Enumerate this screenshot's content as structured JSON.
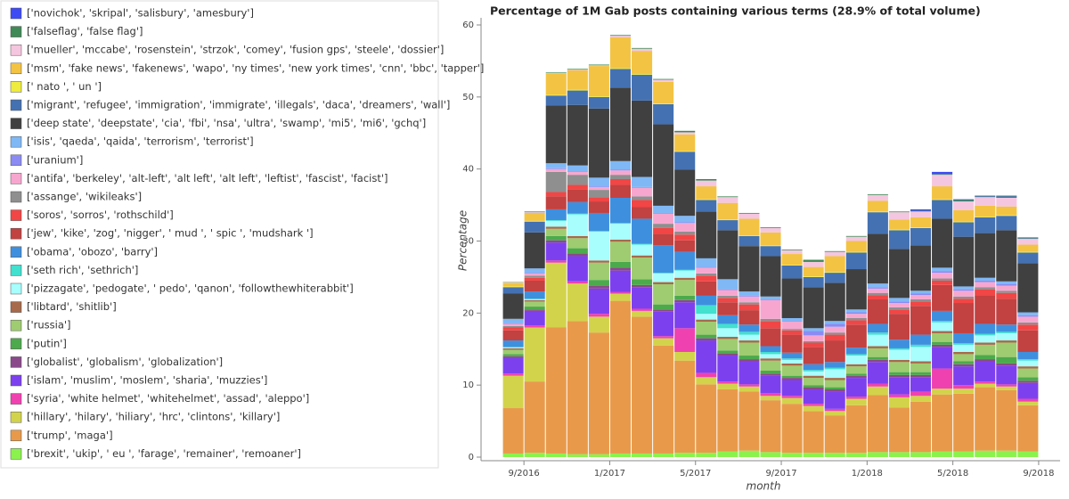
{
  "chart_data": {
    "type": "stacked-bar",
    "title": "Percentage of 1M Gab posts containing various terms (28.9% of total volume)",
    "x_label": "month",
    "y_label": "Percentage",
    "x": [
      "2016-08",
      "2016-09",
      "2016-10",
      "2016-11",
      "2016-12",
      "2017-01",
      "2017-02",
      "2017-03",
      "2017-04",
      "2017-05",
      "2017-06",
      "2017-07",
      "2017-08",
      "2017-09",
      "2017-10",
      "2017-11",
      "2017-12",
      "2018-01",
      "2018-02",
      "2018-03",
      "2018-04",
      "2018-05",
      "2018-06",
      "2018-07",
      "2018-08"
    ],
    "xlim": [
      "2016-07",
      "2018-10"
    ],
    "xticks": [
      {
        "value": "2016-09",
        "label": "9/2016"
      },
      {
        "value": "2017-01",
        "label": "1/2017"
      },
      {
        "value": "2017-05",
        "label": "5/2017"
      },
      {
        "value": "2017-09",
        "label": "9/2017"
      },
      {
        "value": "2018-01",
        "label": "1/2018"
      },
      {
        "value": "2018-05",
        "label": "5/2018"
      },
      {
        "value": "2018-09",
        "label": "9/2018"
      }
    ],
    "ylim": [
      0,
      60
    ],
    "yticks": [
      0,
      10,
      20,
      30,
      40,
      50,
      60
    ],
    "series": [
      {
        "name": "['novichok', 'skripal', 'salisbury', 'amesbury']",
        "color": "#3d4bf5",
        "values": [
          0,
          0,
          0,
          0,
          0,
          0,
          0,
          0,
          0,
          0,
          0,
          0,
          0,
          0,
          0,
          0,
          0,
          0,
          0,
          0.2,
          0.3,
          0.1,
          0.1,
          0.1,
          0.1
        ]
      },
      {
        "name": "['falseflag', 'false flag']",
        "color": "#3f8a56",
        "values": [
          0.05,
          0.1,
          0.1,
          0.1,
          0.1,
          0.1,
          0.1,
          0.1,
          0.2,
          0.2,
          0.1,
          0.1,
          0.1,
          0.1,
          0.3,
          0.1,
          0.1,
          0.1,
          0.1,
          0.1,
          0.1,
          0.2,
          0.1,
          0.2,
          0.1
        ]
      },
      {
        "name": "['mueller', 'mccabe', 'rosenstein', 'strzok', 'comey', 'fusion gps', 'steele', 'dossier']",
        "color": "#f5c6df",
        "values": [
          0.05,
          0.1,
          0.1,
          0.1,
          0.1,
          0.2,
          0.3,
          0.3,
          0.3,
          0.8,
          0.8,
          0.7,
          0.6,
          0.5,
          0.7,
          0.6,
          0.6,
          0.8,
          1.0,
          0.8,
          1.6,
          1.2,
          1.2,
          1.2,
          0.8
        ]
      },
      {
        "name": "['msm', 'fake news', 'fakenews', 'wapo', 'ny times', 'new york times', 'cnn', 'bbc', 'tapper']",
        "color": "#f3c343",
        "values": [
          0.5,
          1.1,
          2.9,
          2.7,
          4.2,
          4.3,
          3.2,
          3.0,
          2.3,
          1.8,
          2.3,
          2.3,
          1.8,
          1.5,
          1.3,
          2.2,
          1.5,
          1.5,
          1.4,
          1.4,
          1.8,
          1.6,
          1.5,
          1.2,
          1.0
        ]
      },
      {
        "name": "[' nato ', ' un ']",
        "color": "#efec3d",
        "values": [
          0.1,
          0.1,
          0.1,
          0.1,
          0.1,
          0.1,
          0.1,
          0.1,
          0.1,
          0.1,
          0.1,
          0.1,
          0.1,
          0.1,
          0.1,
          0.1,
          0.1,
          0.1,
          0.1,
          0.1,
          0.1,
          0.1,
          0.1,
          0.1,
          0.1
        ]
      },
      {
        "name": "['migrant', 'refugee', 'immigration', 'immigrate', 'illegals', 'daca', 'dreamers', 'wall']",
        "color": "#4471b2",
        "values": [
          0.9,
          1.5,
          1.4,
          2.0,
          1.6,
          2.6,
          3.6,
          2.8,
          2.5,
          1.6,
          1.4,
          1.4,
          1.4,
          1.8,
          1.4,
          1.4,
          2.3,
          3.0,
          2.6,
          2.4,
          2.6,
          2.0,
          2.2,
          2.0,
          1.5
        ]
      },
      {
        "name": "['deep state', 'deepstate', 'cia', 'fbi', 'nsa', 'ultra', 'swamp', 'mi5', 'mi6', 'gchq']",
        "color": "#404040",
        "values": [
          3.5,
          5.0,
          8.0,
          8.4,
          9.6,
          10.2,
          10.6,
          11.3,
          6.4,
          6.5,
          6.8,
          6.3,
          5.6,
          5.5,
          5.7,
          5.3,
          5.6,
          6.9,
          6.8,
          6.3,
          6.8,
          6.9,
          6.2,
          7.1,
          6.8
        ]
      },
      {
        "name": "['isis', 'qaeda', 'qaida', 'terrorism', 'terrorist']",
        "color": "#7fb8f5",
        "values": [
          0.6,
          0.6,
          0.7,
          0.8,
          1.2,
          1.2,
          1.4,
          1.0,
          0.9,
          1.2,
          1.4,
          0.6,
          0.4,
          0.4,
          0.4,
          0.4,
          0.4,
          0.5,
          0.5,
          0.4,
          0.5,
          0.4,
          0.4,
          0.4,
          0.4
        ]
      },
      {
        "name": "['uranium']",
        "color": "#8b8bf3",
        "values": [
          0.1,
          0.1,
          0.1,
          0.1,
          0.1,
          0.1,
          0.1,
          0.1,
          0.1,
          0.1,
          0.1,
          0.1,
          0.1,
          0.1,
          0.6,
          0.4,
          0.2,
          0.2,
          0.2,
          0.2,
          0.2,
          0.2,
          0.2,
          0.2,
          0.2
        ]
      },
      {
        "name": "['antifa', 'berkeley', 'alt-left', 'alt left', 'alt left', 'leftist', 'fascist', 'facist']",
        "color": "#f7a7cf",
        "values": [
          0.3,
          0.3,
          0.4,
          0.4,
          0.4,
          0.6,
          1.2,
          1.4,
          1.2,
          0.8,
          0.8,
          0.8,
          2.6,
          1.0,
          0.8,
          0.8,
          0.6,
          0.6,
          0.6,
          0.6,
          0.8,
          0.8,
          0.7,
          0.7,
          0.8
        ]
      },
      {
        "name": "['assange', 'wikileaks']",
        "color": "#8f8f8f",
        "values": [
          0.2,
          0.3,
          2.8,
          1.4,
          1.0,
          0.6,
          0.5,
          0.6,
          0.4,
          0.3,
          0.3,
          0.3,
          0.3,
          0.2,
          0.2,
          0.3,
          0.3,
          0.3,
          0.3,
          0.3,
          0.3,
          0.3,
          0.3,
          0.3,
          0.3
        ]
      },
      {
        "name": "['soros', 'sorros', 'rothschild']",
        "color": "#f24545",
        "values": [
          0.4,
          0.4,
          0.6,
          0.6,
          0.6,
          0.8,
          1.0,
          0.8,
          0.8,
          0.8,
          0.6,
          0.8,
          1.0,
          0.6,
          0.6,
          0.8,
          0.6,
          0.6,
          0.6,
          0.6,
          0.6,
          0.6,
          0.8,
          0.8,
          0.8
        ]
      },
      {
        "name": "['jew', 'kike', 'zog', 'nigger', ' mud ', ' spic ', 'mudshark ']",
        "color": "#c24141",
        "values": [
          1.4,
          1.5,
          1.8,
          1.8,
          1.6,
          1.8,
          1.6,
          1.6,
          1.6,
          2.0,
          1.8,
          2.0,
          2.5,
          2.5,
          2.4,
          3.0,
          3.2,
          3.4,
          3.6,
          4.0,
          3.6,
          4.2,
          4.0,
          3.6,
          3.0
        ]
      },
      {
        "name": "['obama', 'obozo', 'barry']",
        "color": "#3f8fdf",
        "values": [
          0.9,
          1.0,
          1.5,
          1.6,
          2.5,
          3.5,
          3.5,
          3.8,
          2.5,
          1.3,
          1.2,
          1.0,
          0.8,
          0.8,
          0.8,
          0.8,
          0.9,
          1.2,
          1.2,
          1.4,
          1.4,
          1.4,
          1.4,
          1.0,
          1.0
        ]
      },
      {
        "name": "['seth rich', 'sethrich']",
        "color": "#42e0cf",
        "values": [
          0.1,
          0.1,
          0.1,
          0.1,
          0.1,
          0.1,
          0.1,
          0.1,
          0.1,
          1.2,
          0.6,
          0.4,
          0.3,
          0.2,
          0.2,
          0.2,
          0.2,
          0.3,
          0.2,
          0.3,
          0.2,
          0.2,
          0.2,
          0.2,
          0.2
        ]
      },
      {
        "name": "['pizzagate', 'pedogate', ' pedo', 'qanon', 'followthewhiterabbit']",
        "color": "#a8fdfd",
        "values": [
          0.1,
          0.1,
          0.8,
          3.0,
          4.0,
          2.2,
          1.5,
          1.2,
          1.0,
          0.8,
          1.2,
          0.8,
          0.6,
          0.5,
          0.6,
          1.2,
          1.2,
          1.6,
          1.4,
          2.0,
          1.2,
          1.0,
          1.0,
          1.0,
          0.8
        ]
      },
      {
        "name": "['libtard', 'shitlib']",
        "color": "#a76a4a",
        "values": [
          0.2,
          0.2,
          0.3,
          0.3,
          0.3,
          0.3,
          0.3,
          0.3,
          0.3,
          0.3,
          0.3,
          0.3,
          0.3,
          0.3,
          0.3,
          0.3,
          0.3,
          0.3,
          0.3,
          0.3,
          0.3,
          0.3,
          0.3,
          0.3,
          0.3
        ]
      },
      {
        "name": "['russia']",
        "color": "#9fcc70",
        "values": [
          0.6,
          0.7,
          1.0,
          1.4,
          2.4,
          2.8,
          3.0,
          2.8,
          2.2,
          1.8,
          1.6,
          1.8,
          1.4,
          1.4,
          1.0,
          1.0,
          1.0,
          1.2,
          1.4,
          1.2,
          1.2,
          1.0,
          1.4,
          2.0,
          1.2
        ]
      },
      {
        "name": "['putin']",
        "color": "#4caa4c",
        "values": [
          0.3,
          0.4,
          0.6,
          0.7,
          0.8,
          0.8,
          0.8,
          0.7,
          0.6,
          0.5,
          0.4,
          0.5,
          0.4,
          0.3,
          0.3,
          0.3,
          0.3,
          0.4,
          0.4,
          0.4,
          0.4,
          0.4,
          0.6,
          0.9,
          0.5
        ]
      },
      {
        "name": "['globalist', 'globalism', 'globalization']",
        "color": "#8a4a8a",
        "values": [
          0.2,
          0.2,
          0.3,
          0.4,
          0.4,
          0.4,
          0.3,
          0.3,
          0.3,
          0.3,
          0.3,
          0.3,
          0.3,
          0.3,
          0.3,
          0.3,
          0.3,
          0.3,
          0.3,
          0.3,
          0.3,
          0.3,
          0.3,
          0.3,
          0.3
        ]
      },
      {
        "name": "['islam', 'muslim', 'moslem', 'sharia', 'muzzies']",
        "color": "#7d40ef",
        "values": [
          2.2,
          2.0,
          2.5,
          3.5,
          3.5,
          3.0,
          3.0,
          3.4,
          3.6,
          4.5,
          3.6,
          3.2,
          2.4,
          2.2,
          2.0,
          2.4,
          2.6,
          3.0,
          2.4,
          2.0,
          3.0,
          2.6,
          2.8,
          2.6,
          2.2
        ]
      },
      {
        "name": "['syria', 'white helmet', 'whitehelmet', 'assad', 'aleppo']",
        "color": "#f041b0",
        "values": [
          0.3,
          0.3,
          0.3,
          0.3,
          0.4,
          0.2,
          0.3,
          0.3,
          3.3,
          0.6,
          0.3,
          0.3,
          0.4,
          0.3,
          0.3,
          0.3,
          0.3,
          0.4,
          0.4,
          0.6,
          2.8,
          0.5,
          0.3,
          0.3,
          0.4
        ]
      },
      {
        "name": "['hillary', 'hilary', 'hiliary', 'hrc', 'clintons', 'killary']",
        "color": "#d3d34b",
        "values": [
          4.5,
          7.5,
          9.0,
          5.2,
          2.2,
          1.0,
          0.8,
          1.0,
          1.2,
          1.0,
          0.8,
          0.7,
          0.6,
          0.8,
          0.7,
          0.6,
          0.9,
          1.2,
          1.4,
          0.8,
          0.8,
          0.7,
          0.5,
          0.5,
          0.5
        ]
      },
      {
        "name": "['trump', 'maga']",
        "color": "#e89a4a",
        "values": [
          6.3,
          9.9,
          17.5,
          18.5,
          16.9,
          21.2,
          19.0,
          15.0,
          12.8,
          9.5,
          8.6,
          8.2,
          7.2,
          6.8,
          5.8,
          5.2,
          6.6,
          7.9,
          6.2,
          7.0,
          7.9,
          8.0,
          8.8,
          8.4,
          6.4
        ]
      },
      {
        "name": "['brexit', 'ukip', ' eu ', 'farage', 'remainer', 'remoaner']",
        "color": "#8bf24d",
        "values": [
          0.5,
          0.6,
          0.5,
          0.4,
          0.4,
          0.5,
          0.5,
          0.5,
          0.6,
          0.6,
          0.8,
          0.9,
          0.7,
          0.6,
          0.6,
          0.6,
          0.6,
          0.7,
          0.7,
          0.7,
          0.8,
          0.8,
          0.9,
          0.9,
          0.8
        ]
      }
    ]
  }
}
